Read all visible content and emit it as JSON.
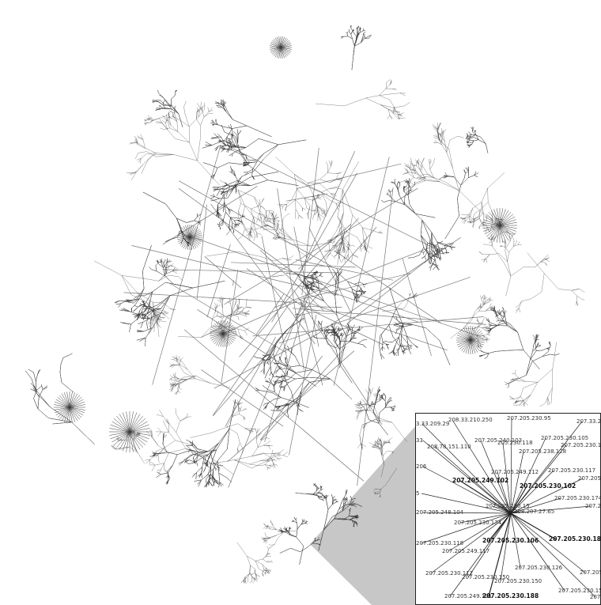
{
  "colors": {
    "edge": "#3a3a3a",
    "background": "#ffffff",
    "inset_border": "#222222"
  },
  "inset_labels": [
    {
      "text": "3.33.209.29"
    },
    {
      "text": "208.33.210.250"
    },
    {
      "text": "207.205.230.95"
    },
    {
      "text": "207.33.20"
    },
    {
      "text": "33"
    },
    {
      "text": "208.78.151.110"
    },
    {
      "text": "207.205.240.103"
    },
    {
      "text": "205.230.118"
    },
    {
      "text": "207.205.230.105"
    },
    {
      "text": "207.205.230.123"
    },
    {
      "text": "207.205.238.128"
    },
    {
      "text": "206"
    },
    {
      "text": "207.205.249.112"
    },
    {
      "text": "207.205.230.117"
    },
    {
      "text": "207.205.2"
    },
    {
      "text": "207.205.249.102",
      "bold": true
    },
    {
      "text": "207.205.230.102",
      "bold": true
    },
    {
      "text": "207.205.230.174"
    },
    {
      "text": "207.20"
    },
    {
      "text": "5"
    },
    {
      "text": "207.205.230.15"
    },
    {
      "text": "207.205.248.104"
    },
    {
      "text": "208.207.27.65"
    },
    {
      "text": "207.205.230.134"
    },
    {
      "text": "207.205.230.118"
    },
    {
      "text": "207.205.230.106",
      "bold": true
    },
    {
      "text": "207.205.230.186",
      "bold": true
    },
    {
      "text": "207.205.249.117"
    },
    {
      "text": "207.205.230.112"
    },
    {
      "text": "207.205.230.150"
    },
    {
      "text": "207.205.230.126"
    },
    {
      "text": "207.205.230.150"
    },
    {
      "text": "207.205"
    },
    {
      "text": "207.205.230.155"
    },
    {
      "text": "207.205.249.101"
    },
    {
      "text": "207.205.230.188",
      "bold": true
    },
    {
      "text": "207.2"
    }
  ]
}
